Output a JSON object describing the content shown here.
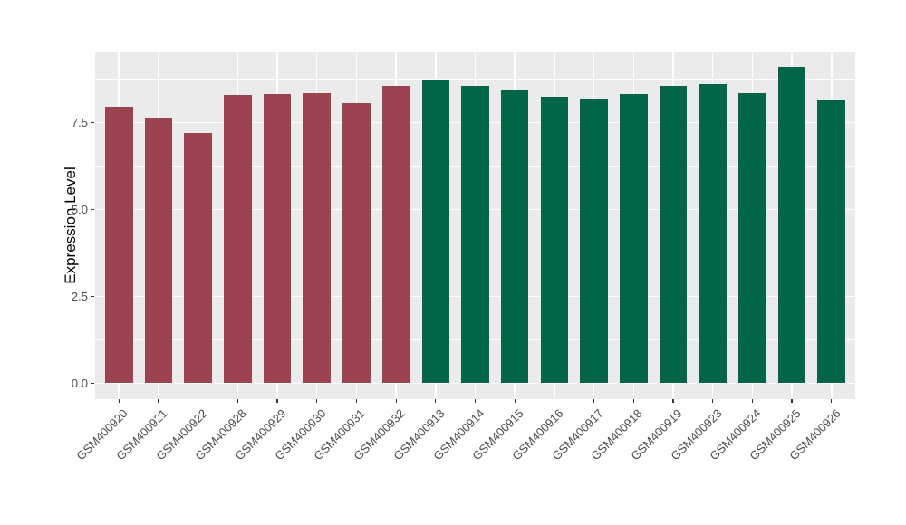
{
  "chart_data": {
    "type": "bar",
    "title": "",
    "xlabel": "",
    "ylabel": "Expression Level",
    "categories": [
      "GSM400920",
      "GSM400921",
      "GSM400922",
      "GSM400928",
      "GSM400929",
      "GSM400930",
      "GSM400931",
      "GSM400932",
      "GSM400913",
      "GSM400914",
      "GSM400915",
      "GSM400916",
      "GSM400917",
      "GSM400918",
      "GSM400919",
      "GSM400923",
      "GSM400924",
      "GSM400925",
      "GSM400926"
    ],
    "values": [
      7.95,
      7.63,
      7.2,
      8.3,
      8.32,
      8.35,
      8.06,
      8.54,
      8.72,
      8.56,
      8.44,
      8.25,
      8.18,
      8.32,
      8.55,
      8.6,
      8.33,
      9.1,
      8.16
    ],
    "groups": [
      "A",
      "A",
      "A",
      "A",
      "A",
      "A",
      "A",
      "A",
      "B",
      "B",
      "B",
      "B",
      "B",
      "B",
      "B",
      "B",
      "B",
      "B",
      "B"
    ],
    "group_colors": {
      "A": "#9B4350",
      "B": "#006647"
    },
    "ylim": [
      -0.46,
      9.54
    ],
    "yticks": [
      0,
      2.5,
      5,
      7.5
    ],
    "ytick_labels": [
      "0.0",
      "2.5",
      "5.0",
      "7.5"
    ],
    "minor_yticks": [
      1.25,
      3.75,
      6.25,
      8.75
    ],
    "grid": true,
    "legend": "none",
    "panel_background": "#EBEBEB",
    "grid_color": "#FFFFFF",
    "tick_color": "#333333",
    "tick_label_color": "#4D4D4D",
    "axis_title_color": "#000000",
    "bar_width_fraction": 0.7,
    "x_label_rotation_deg": 45
  }
}
